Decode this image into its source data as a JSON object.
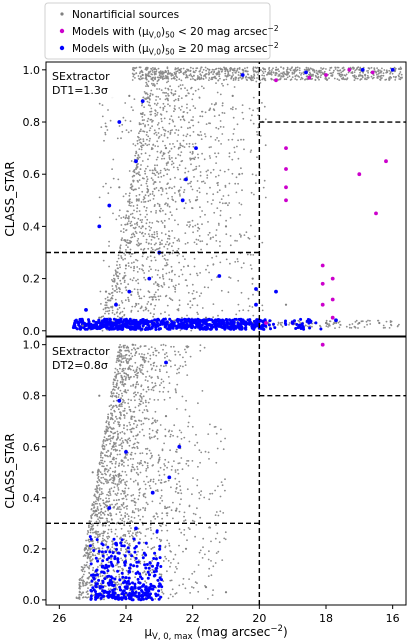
{
  "legend": {
    "placement": "top-center",
    "entries": [
      {
        "label": "Nonartificial sources",
        "color": "#808080",
        "marker": "small-dot"
      },
      {
        "label_html": [
          "Models with (μ",
          "V,0",
          ")",
          "50",
          " < 20 mag arcsec",
          "−2"
        ],
        "color": "#cc00cc",
        "marker": "dot"
      },
      {
        "label_html": [
          "Models with (μ",
          "V,0",
          ")",
          "50",
          " ≥ 20 mag arcsec",
          "−2"
        ],
        "color": "#0000ff",
        "marker": "dot"
      }
    ]
  },
  "shared_x": {
    "label_parts": [
      "μ",
      "V, 0, max",
      " (mag arcsec",
      "−2",
      ")"
    ],
    "ticks": [
      "26",
      "24",
      "22",
      "20",
      "18",
      "16"
    ],
    "tick_values": [
      26,
      24,
      22,
      20,
      18,
      16
    ]
  },
  "chart_data": [
    {
      "type": "scatter",
      "panel": "top",
      "annotation": [
        "SExtractor",
        "DT1=1.3σ"
      ],
      "ylabel": "CLASS_STAR",
      "xlim": [
        26.4,
        15.6
      ],
      "ylim": [
        -0.02,
        1.03
      ],
      "x_reversed": true,
      "yticks": [
        "0.0",
        "0.2",
        "0.4",
        "0.6",
        "0.8",
        "1.0"
      ],
      "ytick_values": [
        0.0,
        0.2,
        0.4,
        0.6,
        0.8,
        1.0
      ],
      "dashed_lines": [
        {
          "x": [
            26.4,
            20
          ],
          "y": [
            0.3,
            0.3
          ]
        },
        {
          "x": [
            20,
            20
          ],
          "y": [
            -0.02,
            1.03
          ]
        },
        {
          "x": [
            20,
            15.6
          ],
          "y": [
            0.8,
            0.8
          ]
        }
      ],
      "series": [
        {
          "color": "#808080",
          "points": [
            [
              25.3,
              0.02
            ],
            [
              24.6,
              0.15
            ],
            [
              24.2,
              0.55
            ],
            [
              23.9,
              0.9
            ],
            [
              23.5,
              0.98
            ],
            [
              23.0,
              0.99
            ],
            [
              22.4,
              1.0
            ],
            [
              21.5,
              1.0
            ],
            [
              20.5,
              1.0
            ],
            [
              19.5,
              1.0
            ],
            [
              18.5,
              1.0
            ],
            [
              17.0,
              1.0
            ],
            [
              16.0,
              1.0
            ],
            [
              22.8,
              0.7
            ],
            [
              21.9,
              0.5
            ],
            [
              21.0,
              0.4
            ],
            [
              20.6,
              0.6
            ],
            [
              20.2,
              0.2
            ],
            [
              19.2,
              0.1
            ],
            [
              18.0,
              0.03
            ],
            [
              17.0,
              0.03
            ],
            [
              16.4,
              0.03
            ],
            [
              23.5,
              0.4
            ],
            [
              22.9,
              0.3
            ],
            [
              22.3,
              0.82
            ],
            [
              21.6,
              0.05
            ],
            [
              20.8,
              0.9
            ],
            [
              24.8,
              0.05
            ],
            [
              24.0,
              0.25
            ],
            [
              23.2,
              0.12
            ]
          ]
        },
        {
          "color": "#cc00cc",
          "points": [
            [
              19.2,
              0.7
            ],
            [
              19.2,
              0.62
            ],
            [
              19.2,
              0.55
            ],
            [
              19.2,
              0.5
            ],
            [
              18.1,
              0.25
            ],
            [
              18.1,
              0.18
            ],
            [
              18.1,
              0.1
            ],
            [
              17.8,
              0.2
            ],
            [
              17.8,
              0.12
            ],
            [
              17.8,
              0.05
            ],
            [
              17.0,
              0.6
            ],
            [
              16.5,
              0.45
            ],
            [
              16.2,
              0.65
            ],
            [
              18.5,
              0.97
            ],
            [
              19.5,
              0.96
            ],
            [
              18.0,
              0.98
            ],
            [
              17.3,
              1.0
            ],
            [
              16.6,
              0.99
            ],
            [
              19.8,
              0.03
            ],
            [
              19.0,
              0.03
            ]
          ]
        },
        {
          "color": "#0000ff",
          "points": [
            [
              25.0,
              0.02
            ],
            [
              24.4,
              0.02
            ],
            [
              23.6,
              0.03
            ],
            [
              22.8,
              0.03
            ],
            [
              22.0,
              0.04
            ],
            [
              21.2,
              0.04
            ],
            [
              20.5,
              0.04
            ],
            [
              20.1,
              0.1
            ],
            [
              20.1,
              0.16
            ],
            [
              19.5,
              0.15
            ],
            [
              19.0,
              0.03
            ],
            [
              24.3,
              0.1
            ],
            [
              23.3,
              0.2
            ],
            [
              24.8,
              0.4
            ],
            [
              24.5,
              0.48
            ],
            [
              23.0,
              0.3
            ],
            [
              22.2,
              0.58
            ],
            [
              23.7,
              0.65
            ],
            [
              21.9,
              0.7
            ],
            [
              24.2,
              0.8
            ],
            [
              23.5,
              0.88
            ],
            [
              22.3,
              0.5
            ],
            [
              21.2,
              0.21
            ],
            [
              23.9,
              0.15
            ],
            [
              25.2,
              0.08
            ],
            [
              20.5,
              0.98
            ],
            [
              18.6,
              0.99
            ],
            [
              16.9,
              1.0
            ],
            [
              16.0,
              1.0
            ],
            [
              18.5,
              0.04
            ],
            [
              17.7,
              0.04
            ]
          ]
        }
      ]
    },
    {
      "type": "scatter",
      "panel": "bottom",
      "annotation": [
        "SExtractor",
        "DT2=0.8σ"
      ],
      "ylabel": "CLASS_STAR",
      "xlim": [
        26.4,
        15.6
      ],
      "ylim": [
        -0.02,
        1.03
      ],
      "x_reversed": true,
      "yticks": [
        "0.0",
        "0.2",
        "0.4",
        "0.6",
        "0.8",
        "1.0"
      ],
      "ytick_values": [
        0.0,
        0.2,
        0.4,
        0.6,
        0.8,
        1.0
      ],
      "dashed_lines": [
        {
          "x": [
            26.4,
            20
          ],
          "y": [
            0.3,
            0.3
          ]
        },
        {
          "x": [
            20,
            20
          ],
          "y": [
            -0.02,
            1.03
          ]
        },
        {
          "x": [
            20,
            15.6
          ],
          "y": [
            0.8,
            0.8
          ]
        }
      ],
      "series": [
        {
          "color": "#808080",
          "points": [
            [
              25.4,
              0.01
            ],
            [
              25.2,
              0.2
            ],
            [
              25.0,
              0.5
            ],
            [
              24.8,
              0.8
            ],
            [
              24.5,
              0.95
            ],
            [
              24.2,
              0.99
            ],
            [
              23.8,
              1.0
            ],
            [
              23.5,
              0.95
            ],
            [
              23.0,
              0.55
            ],
            [
              22.5,
              0.35
            ],
            [
              22.2,
              0.2
            ],
            [
              21.6,
              0.05
            ],
            [
              21.0,
              0.03
            ],
            [
              24.0,
              0.02
            ],
            [
              23.4,
              0.1
            ],
            [
              22.8,
              0.72
            ],
            [
              24.9,
              0.35
            ],
            [
              24.4,
              0.6
            ]
          ]
        },
        {
          "color": "#cc00cc",
          "points": [
            [
              18.1,
              1.0
            ]
          ]
        },
        {
          "color": "#0000ff",
          "points": [
            [
              24.9,
              0.01
            ],
            [
              24.4,
              0.01
            ],
            [
              23.8,
              0.02
            ],
            [
              23.4,
              0.02
            ],
            [
              24.7,
              0.13
            ],
            [
              24.3,
              0.22
            ],
            [
              23.7,
              0.28
            ],
            [
              24.5,
              0.36
            ],
            [
              24.0,
              0.58
            ],
            [
              23.2,
              0.42
            ],
            [
              22.7,
              0.48
            ],
            [
              22.4,
              0.6
            ],
            [
              24.2,
              0.78
            ],
            [
              22.8,
              0.93
            ],
            [
              23.4,
              0.05
            ],
            [
              23.9,
              0.11
            ]
          ]
        }
      ]
    }
  ]
}
